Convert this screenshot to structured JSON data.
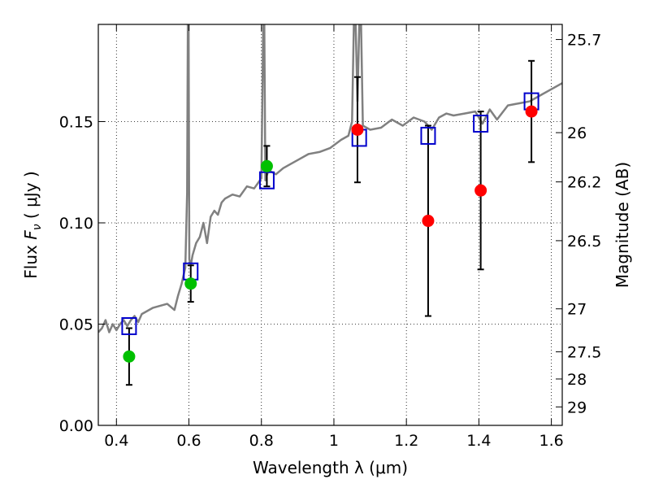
{
  "chart_data": {
    "type": "scatter",
    "title": "",
    "xlabel": "Wavelength  λ (μm)",
    "ylabel_prefix": "Flux  ",
    "ylabel_symbol": "F",
    "ylabel_subscript": "ν",
    "ylabel_units": "  ( μJy )",
    "ylabel_right": "Magnitude (AB)",
    "xlim": [
      0.35,
      1.63
    ],
    "ylim": [
      0.0,
      0.198
    ],
    "grid": true,
    "x_ticks": [
      {
        "value": 0.4,
        "label": "0.4"
      },
      {
        "value": 0.6,
        "label": "0.6"
      },
      {
        "value": 0.8,
        "label": "0.8"
      },
      {
        "value": 1.0,
        "label": "1"
      },
      {
        "value": 1.2,
        "label": "1.2"
      },
      {
        "value": 1.4,
        "label": "1.4"
      },
      {
        "value": 1.6,
        "label": "1.6"
      }
    ],
    "y_ticks": [
      {
        "value": 0.0,
        "label": "0.00"
      },
      {
        "value": 0.05,
        "label": "0.05"
      },
      {
        "value": 0.1,
        "label": "0.10"
      },
      {
        "value": 0.15,
        "label": "0.15"
      }
    ],
    "right_ticks": [
      {
        "value": 25.7,
        "label": "25.7"
      },
      {
        "value": 26.0,
        "label": "26"
      },
      {
        "value": 26.2,
        "label": "26.2"
      },
      {
        "value": 26.5,
        "label": "26.5"
      },
      {
        "value": 27.0,
        "label": "27"
      },
      {
        "value": 27.5,
        "label": "27.5"
      },
      {
        "value": 28.0,
        "label": "28"
      },
      {
        "value": 29.0,
        "label": "29"
      }
    ],
    "template_spectrum": {
      "color": "#808080",
      "x": [
        0.35,
        0.36,
        0.37,
        0.38,
        0.39,
        0.4,
        0.41,
        0.42,
        0.43,
        0.44,
        0.45,
        0.46,
        0.47,
        0.48,
        0.5,
        0.52,
        0.54,
        0.56,
        0.57,
        0.58,
        0.59,
        0.595,
        0.597,
        0.599,
        0.601,
        0.605,
        0.61,
        0.62,
        0.63,
        0.64,
        0.65,
        0.66,
        0.67,
        0.68,
        0.69,
        0.7,
        0.72,
        0.74,
        0.76,
        0.78,
        0.8,
        0.805,
        0.808,
        0.811,
        0.814,
        0.82,
        0.84,
        0.86,
        0.88,
        0.9,
        0.93,
        0.96,
        0.99,
        1.02,
        1.04,
        1.05,
        1.055,
        1.06,
        1.065,
        1.07,
        1.075,
        1.08,
        1.1,
        1.13,
        1.16,
        1.19,
        1.22,
        1.25,
        1.27,
        1.29,
        1.31,
        1.33,
        1.36,
        1.39,
        1.41,
        1.43,
        1.45,
        1.48,
        1.51,
        1.54,
        1.57,
        1.6,
        1.63
      ],
      "y": [
        0.046,
        0.048,
        0.052,
        0.046,
        0.05,
        0.047,
        0.05,
        0.052,
        0.049,
        0.052,
        0.054,
        0.051,
        0.055,
        0.056,
        0.058,
        0.059,
        0.06,
        0.057,
        0.064,
        0.07,
        0.078,
        0.115,
        0.198,
        0.198,
        0.082,
        0.079,
        0.084,
        0.09,
        0.093,
        0.1,
        0.09,
        0.103,
        0.106,
        0.104,
        0.11,
        0.112,
        0.114,
        0.113,
        0.118,
        0.117,
        0.122,
        0.198,
        0.198,
        0.121,
        0.123,
        0.126,
        0.124,
        0.127,
        0.129,
        0.131,
        0.134,
        0.135,
        0.137,
        0.141,
        0.143,
        0.15,
        0.198,
        0.198,
        0.16,
        0.198,
        0.198,
        0.148,
        0.146,
        0.147,
        0.151,
        0.148,
        0.152,
        0.15,
        0.146,
        0.152,
        0.154,
        0.153,
        0.154,
        0.155,
        0.149,
        0.156,
        0.151,
        0.158,
        0.159,
        0.16,
        0.163,
        0.166,
        0.169
      ]
    },
    "model_fluxes": {
      "color": "#0000cc",
      "marker": "open-square",
      "x": [
        0.435,
        0.605,
        0.815,
        1.07,
        1.26,
        1.405,
        1.545
      ],
      "y": [
        0.049,
        0.076,
        0.121,
        0.142,
        0.143,
        0.149,
        0.16
      ]
    },
    "detections": {
      "color": "#00c000",
      "marker": "filled-circle",
      "x": [
        0.435,
        0.605,
        0.815
      ],
      "y": [
        0.034,
        0.07,
        0.128
      ],
      "yerr_low": [
        0.014,
        0.009,
        0.01
      ],
      "yerr_high": [
        0.014,
        0.009,
        0.01
      ]
    },
    "upper_limits": {
      "color": "#ff0000",
      "marker": "filled-circle",
      "x": [
        1.065,
        1.26,
        1.405,
        1.545
      ],
      "y": [
        0.146,
        0.101,
        0.116,
        0.155
      ],
      "yerr_low": [
        0.026,
        0.047,
        0.039,
        0.025
      ],
      "yerr_high": [
        0.026,
        0.047,
        0.039,
        0.025
      ]
    }
  }
}
